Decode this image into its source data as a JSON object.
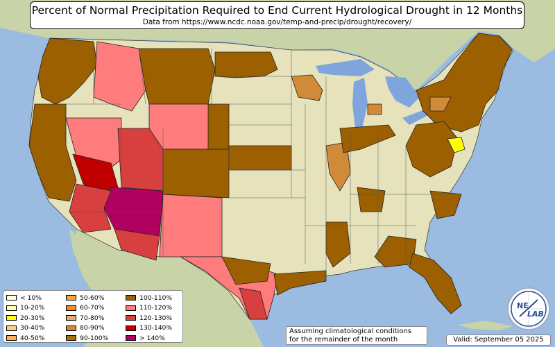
{
  "header": {
    "title": "Percent of Normal Precipitation Required to End Current Hydrological Drought in 12 Months",
    "subtitle": "Data from https://www.ncdc.noaa.gov/temp-and-precip/drought/recovery/"
  },
  "legend": {
    "items": [
      {
        "label": "< 10%",
        "color": "#ffffe0"
      },
      {
        "label": "10-20%",
        "color": "#ffffa8"
      },
      {
        "label": "20-30%",
        "color": "#ffff00"
      },
      {
        "label": "30-40%",
        "color": "#fdd088"
      },
      {
        "label": "40-50%",
        "color": "#ffb050"
      },
      {
        "label": "50-60%",
        "color": "#f8a830"
      },
      {
        "label": "60-70%",
        "color": "#f0902c"
      },
      {
        "label": "70-80%",
        "color": "#e8a878"
      },
      {
        "label": "80-90%",
        "color": "#d08a38"
      },
      {
        "label": "90-100%",
        "color": "#a87000"
      },
      {
        "label": "100-110%",
        "color": "#9c6000"
      },
      {
        "label": "110-120%",
        "color": "#ff7c7c"
      },
      {
        "label": "120-130%",
        "color": "#d84040"
      },
      {
        "label": "130-140%",
        "color": "#c00000"
      },
      {
        "label": "> 140%",
        "color": "#b00060"
      }
    ]
  },
  "note": {
    "line1": "Assuming climatological conditions",
    "line2": "for the remainder of the month"
  },
  "valid": "Valid: September 05 2025",
  "logo": {
    "text_top": "NE",
    "text_bottom": "LAB",
    "icon": "nexlab-logo-icon"
  },
  "colors": {
    "ocean": "#9bbbe0",
    "land_normal": "#e6e2bc",
    "land_foreign": "#c8d4a8",
    "lakes": "#7fa6dc"
  }
}
